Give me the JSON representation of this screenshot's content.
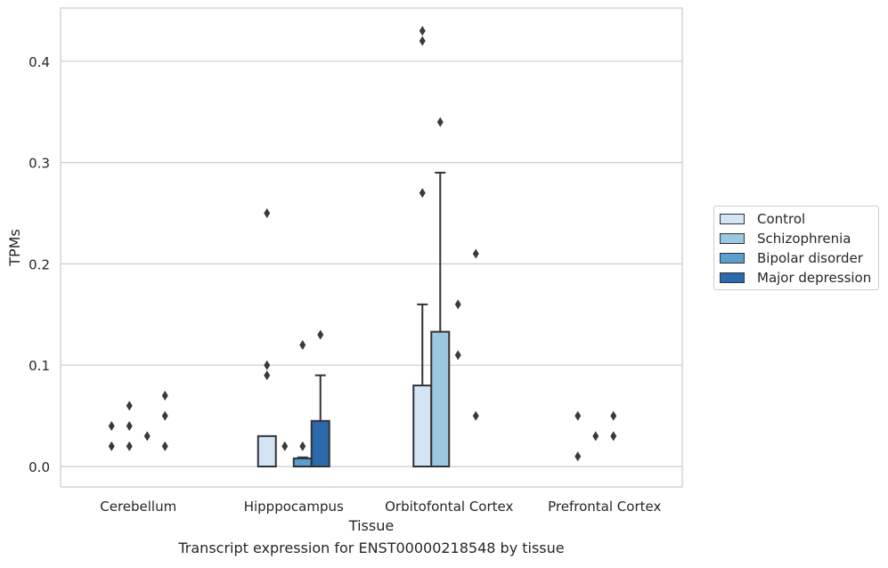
{
  "chart_data": {
    "type": "bar",
    "caption": "Transcript expression for ENST00000218548 by tissue",
    "xlabel": "Tissue",
    "ylabel": "TPMs",
    "ylim": [
      -0.021,
      0.452
    ],
    "yticks": [
      0.0,
      0.1,
      0.2,
      0.3,
      0.4
    ],
    "ytick_labels": [
      "0.0",
      "0.1",
      "0.2",
      "0.3",
      "0.4"
    ],
    "grid": "horizontal",
    "legend_position": "right",
    "categories": [
      "Cerebellum",
      "Hipppocampus",
      "Orbitofontal Cortex",
      "Prefrontal Cortex"
    ],
    "series": [
      {
        "name": "Control",
        "color": "#d3e4f3",
        "values": [
          0.0,
          0.03,
          0.08,
          0.0
        ],
        "error_high": [
          null,
          null,
          0.16,
          null
        ],
        "outliers": [
          [
            0.02,
            0.04
          ],
          [
            0.09,
            0.1,
            0.25
          ],
          [
            0.27,
            0.42,
            0.43
          ],
          [
            0.01,
            0.05
          ]
        ]
      },
      {
        "name": "Schizophrenia",
        "color": "#9ac8e0",
        "values": [
          0.0,
          0.0,
          0.133,
          0.0
        ],
        "error_high": [
          null,
          null,
          0.29,
          null
        ],
        "outliers": [
          [
            0.02,
            0.04,
            0.06
          ],
          [
            0.02
          ],
          [
            0.34
          ],
          [
            0.03
          ]
        ]
      },
      {
        "name": "Bipolar disorder",
        "color": "#5a9fcd",
        "values": [
          0.0,
          0.008,
          0.0,
          0.0
        ],
        "error_high": [
          null,
          0.009,
          null,
          null
        ],
        "outliers": [
          [
            0.03
          ],
          [
            0.02,
            0.12
          ],
          [
            0.11,
            0.16
          ],
          [
            0.03,
            0.05
          ]
        ]
      },
      {
        "name": "Major depression",
        "color": "#2a6aad",
        "values": [
          0.0,
          0.045,
          0.0,
          0.0
        ],
        "error_high": [
          null,
          0.09,
          null,
          null
        ],
        "outliers": [
          [
            0.02,
            0.05,
            0.07
          ],
          [
            0.13
          ],
          [
            0.05,
            0.21
          ],
          []
        ]
      }
    ]
  }
}
